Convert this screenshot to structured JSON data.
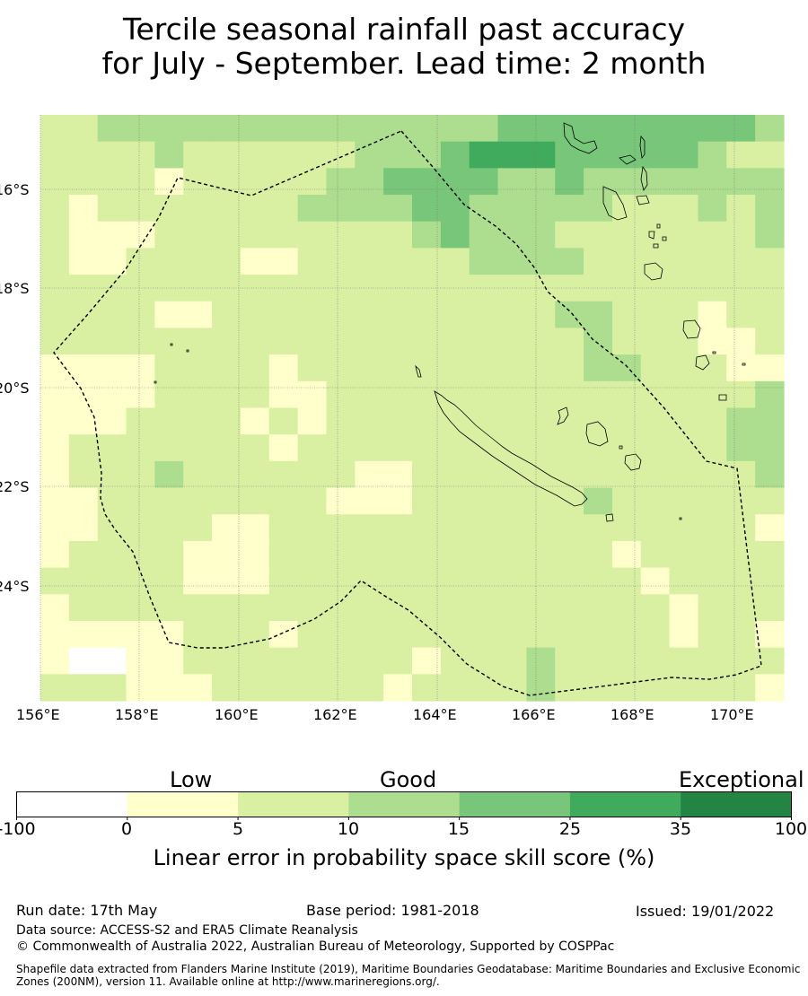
{
  "title": {
    "line1": "Tercile seasonal rainfall past accuracy",
    "line2": "for July - September. Lead time: 2 month"
  },
  "map": {
    "lon_ticks": [
      "156°E",
      "158°E",
      "160°E",
      "162°E",
      "164°E",
      "166°E",
      "168°E",
      "170°E"
    ],
    "lat_ticks": [
      "16°S",
      "18°S",
      "20°S",
      "22°S",
      "24°S"
    ],
    "grid_rows": [
      "11222222222222223333333332",
      "11112111111222344433333211",
      "11110111112233332232222222",
      "10111111122223322222111212",
      "10001111111112322211111112",
      "10011110011111122221111111",
      "11111111111111111111111111",
      "11110011111111111122111011",
      "11111111111111111112111001",
      "00001111011111111112211100",
      "00001111001111111111111112",
      "00011110101111111111111122",
      "01111111011111111111111122",
      "01112111111001111111111112",
      "00111111110001111112111111",
      "00111100111111111111111110",
      "01111000111111111111011111",
      "11111000111111111111101111",
      "01111111111111111111110111",
      "00000111011111111111110110",
      "0zz00111111110111211111111",
      "11100011111101111211111110"
    ],
    "colors": {
      "z": "#ffffff",
      "0": "#ffffcc",
      "1": "#d9f0a3",
      "2": "#addd8e",
      "3": "#78c679",
      "4": "#41ab5d",
      "5": "#238443"
    }
  },
  "colorbar": {
    "category_labels": {
      "low": "Low",
      "good": "Good",
      "exceptional": "Exceptional"
    },
    "ticks": [
      "-100",
      "0",
      "5",
      "10",
      "15",
      "25",
      "35",
      "100"
    ],
    "colors": [
      "#ffffff",
      "#ffffcc",
      "#d9f0a3",
      "#addd8e",
      "#78c679",
      "#41ab5d",
      "#238443"
    ],
    "title": "Linear error in probability space skill score (%)"
  },
  "footer": {
    "run_date": "Run date: 17th May",
    "base_period": "Base period: 1981-2018",
    "issued": "Issued: 19/01/2022",
    "data_source": "Data source: ACCESS-S2 and ERA5 Climate Reanalysis",
    "copyright": "© Commonwealth of Australia 2022, Australian Bureau of Meteorology, Supported by COSPPac",
    "shapefile": "Shapefile data extracted from Flanders Marine Institute (2019), Maritime Boundaries Geodatabase: Maritime Boundaries and Exclusive Economic Zones (200NM), version 11. Available online at http://www.marineregions.org/."
  }
}
